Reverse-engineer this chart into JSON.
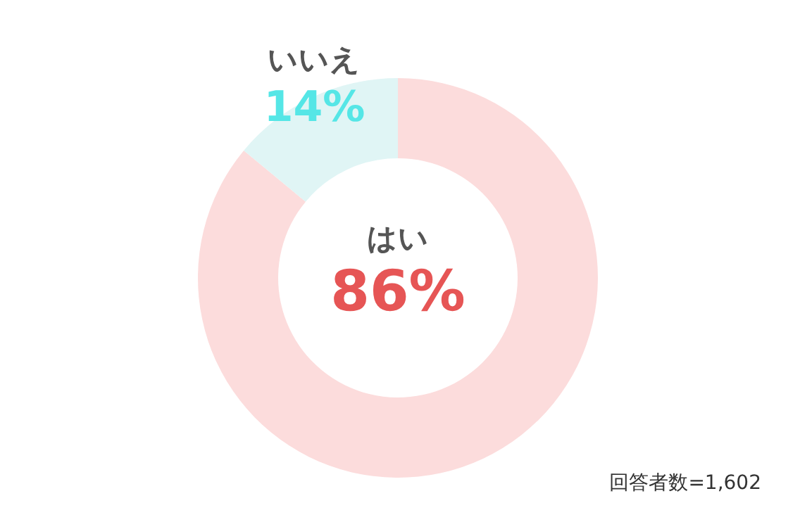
{
  "chart_data": {
    "type": "donut",
    "categories": [
      "はい",
      "いいえ"
    ],
    "values": [
      86,
      14
    ],
    "colors": [
      "#fcdcdc",
      "#e0f5f5"
    ],
    "value_labels": [
      "86%",
      "14%"
    ],
    "annotations": [
      "回答者数=1,602"
    ]
  }
}
